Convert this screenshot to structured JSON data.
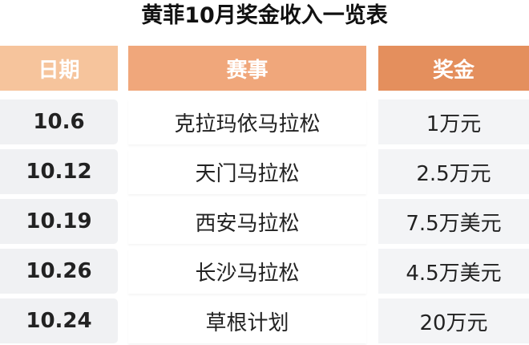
{
  "title": "黄菲10月奖金收入一览表",
  "headers": [
    {
      "label": "日期",
      "color": "#f6c49c"
    },
    {
      "label": "赛事",
      "color": "#f0a77b"
    },
    {
      "label": "奖金",
      "color": "#e48f5d"
    }
  ],
  "rows": [
    {
      "date": "10.6",
      "event": "克拉玛依马拉松",
      "prize": "1万元"
    },
    {
      "date": "10.12",
      "event": "天门马拉松",
      "prize": "2.5万元"
    },
    {
      "date": "10.19",
      "event": "西安马拉松",
      "prize": "7.5万美元"
    },
    {
      "date": "10.26",
      "event": "长沙马拉松",
      "prize": "4.5万美元"
    },
    {
      "date": "10.24",
      "event": "草根计划",
      "prize": "20万元"
    }
  ]
}
